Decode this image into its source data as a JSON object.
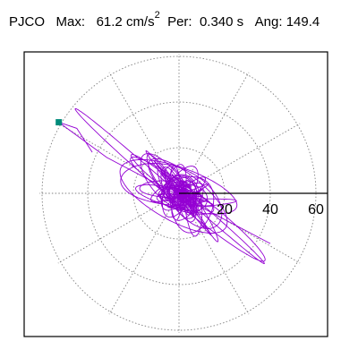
{
  "header": {
    "station": "PJCO",
    "max_label": "Max:",
    "max_value": "61.2",
    "max_unit": "cm/s",
    "max_unit_exp": "2",
    "per_label": "Per:",
    "per_value": "0.340 s",
    "ang_label": "Ang:",
    "ang_value": "149.4"
  },
  "colors": {
    "trace": "#9400d3",
    "marker": "#008b7a",
    "grid": "#808080",
    "frame": "#000000"
  },
  "chart_data": {
    "type": "scatter",
    "title": "PJCO  Max: 61.2 cm/s2  Per: 0.340 s  Ang: 149.4",
    "xlabel": "",
    "ylabel": "",
    "polar": true,
    "r_max": 61.2,
    "rings": [
      20,
      40,
      60
    ],
    "tick_labels": [
      "20",
      "40",
      "60"
    ],
    "spokes_deg": [
      0,
      30,
      60,
      90,
      120,
      150,
      180,
      210,
      240,
      270,
      300,
      330
    ],
    "grid": true,
    "peak": {
      "r": 61.2,
      "angle_deg": 149.4
    },
    "trace_orientation_deg": 149.4
  }
}
